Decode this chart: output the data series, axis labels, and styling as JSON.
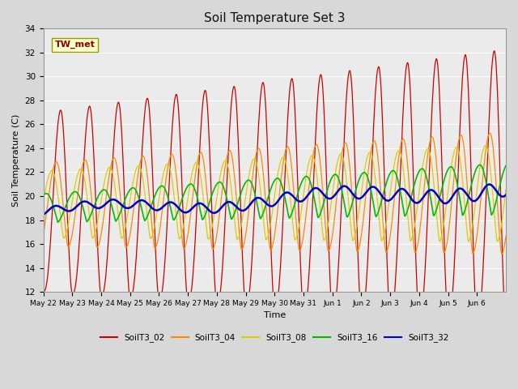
{
  "title": "Soil Temperature Set 3",
  "xlabel": "Time",
  "ylabel": "Soil Temperature (C)",
  "ylim": [
    12,
    34
  ],
  "yticks": [
    12,
    14,
    16,
    18,
    20,
    22,
    24,
    26,
    28,
    30,
    32,
    34
  ],
  "bg_color": "#d8d8d8",
  "plot_bg_color": "#ebebeb",
  "annotation_text": "TW_met",
  "annotation_color": "#8b0000",
  "annotation_bg": "#ffffcc",
  "series_colors": {
    "SoilT3_02": "#cc0000",
    "SoilT3_04": "#ff8800",
    "SoilT3_08": "#ddcc00",
    "SoilT3_16": "#00bb00",
    "SoilT3_32": "#0000cc"
  },
  "day_labels": [
    "May 22",
    "May 23",
    "May 24",
    "May 25",
    "May 26",
    "May 27",
    "May 28",
    "May 29",
    "May 30",
    "May 31",
    "Jun 1",
    "Jun 2",
    "Jun 3",
    "Jun 4",
    "Jun 5",
    "Jun 6"
  ],
  "n_days": 16,
  "pts_per_day": 48
}
